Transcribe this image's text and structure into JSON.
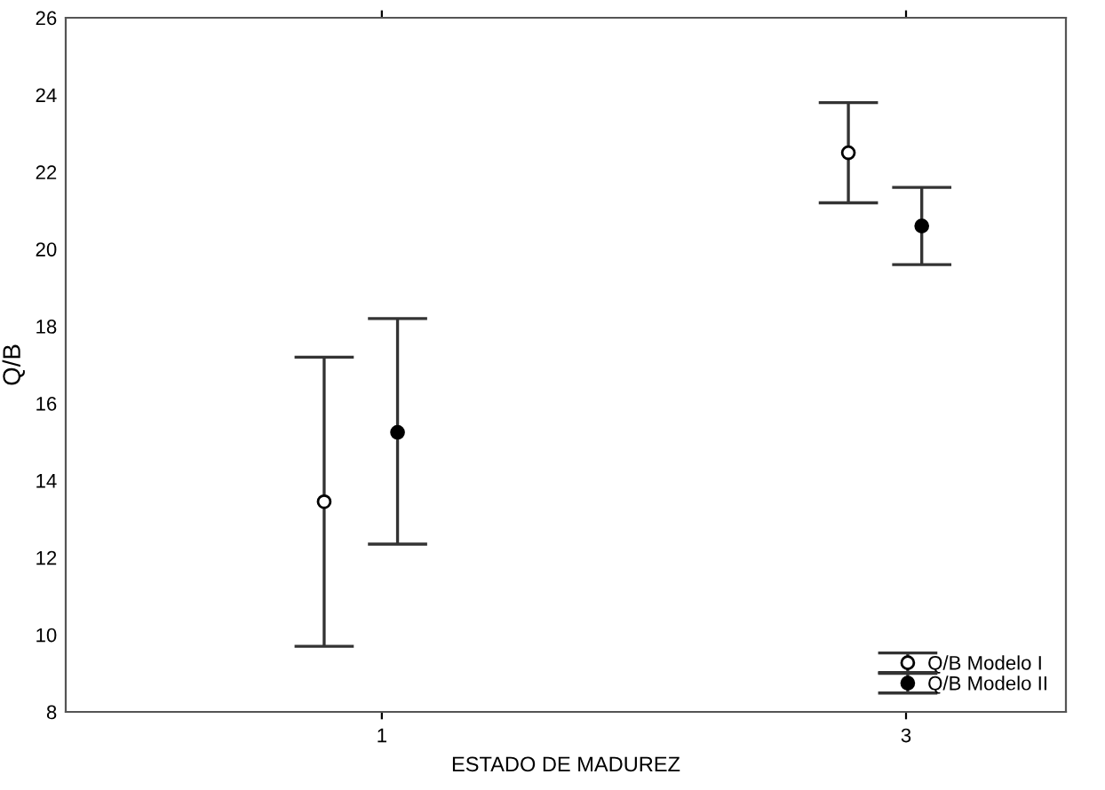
{
  "chart_data": {
    "type": "scatter",
    "xlabel": "ESTADO DE MADUREZ",
    "ylabel": "Q/B",
    "categories": [
      "1",
      "3"
    ],
    "series": [
      {
        "name": "Q/B Modelo I",
        "color": "#ffffff",
        "values": [
          13.45,
          22.5
        ],
        "errors": [
          [
            9.7,
            17.2
          ],
          [
            21.2,
            23.8
          ]
        ]
      },
      {
        "name": "Q/B Modelo II",
        "color": "#000000",
        "values": [
          15.25,
          20.6
        ],
        "errors": [
          [
            12.35,
            18.2
          ],
          [
            19.6,
            21.6
          ]
        ]
      }
    ],
    "ylim": [
      8,
      26
    ],
    "yticks": [
      8,
      10,
      12,
      14,
      16,
      18,
      20,
      22,
      24,
      26
    ],
    "marker": "circle",
    "legend": "bottom right",
    "grid": false
  }
}
